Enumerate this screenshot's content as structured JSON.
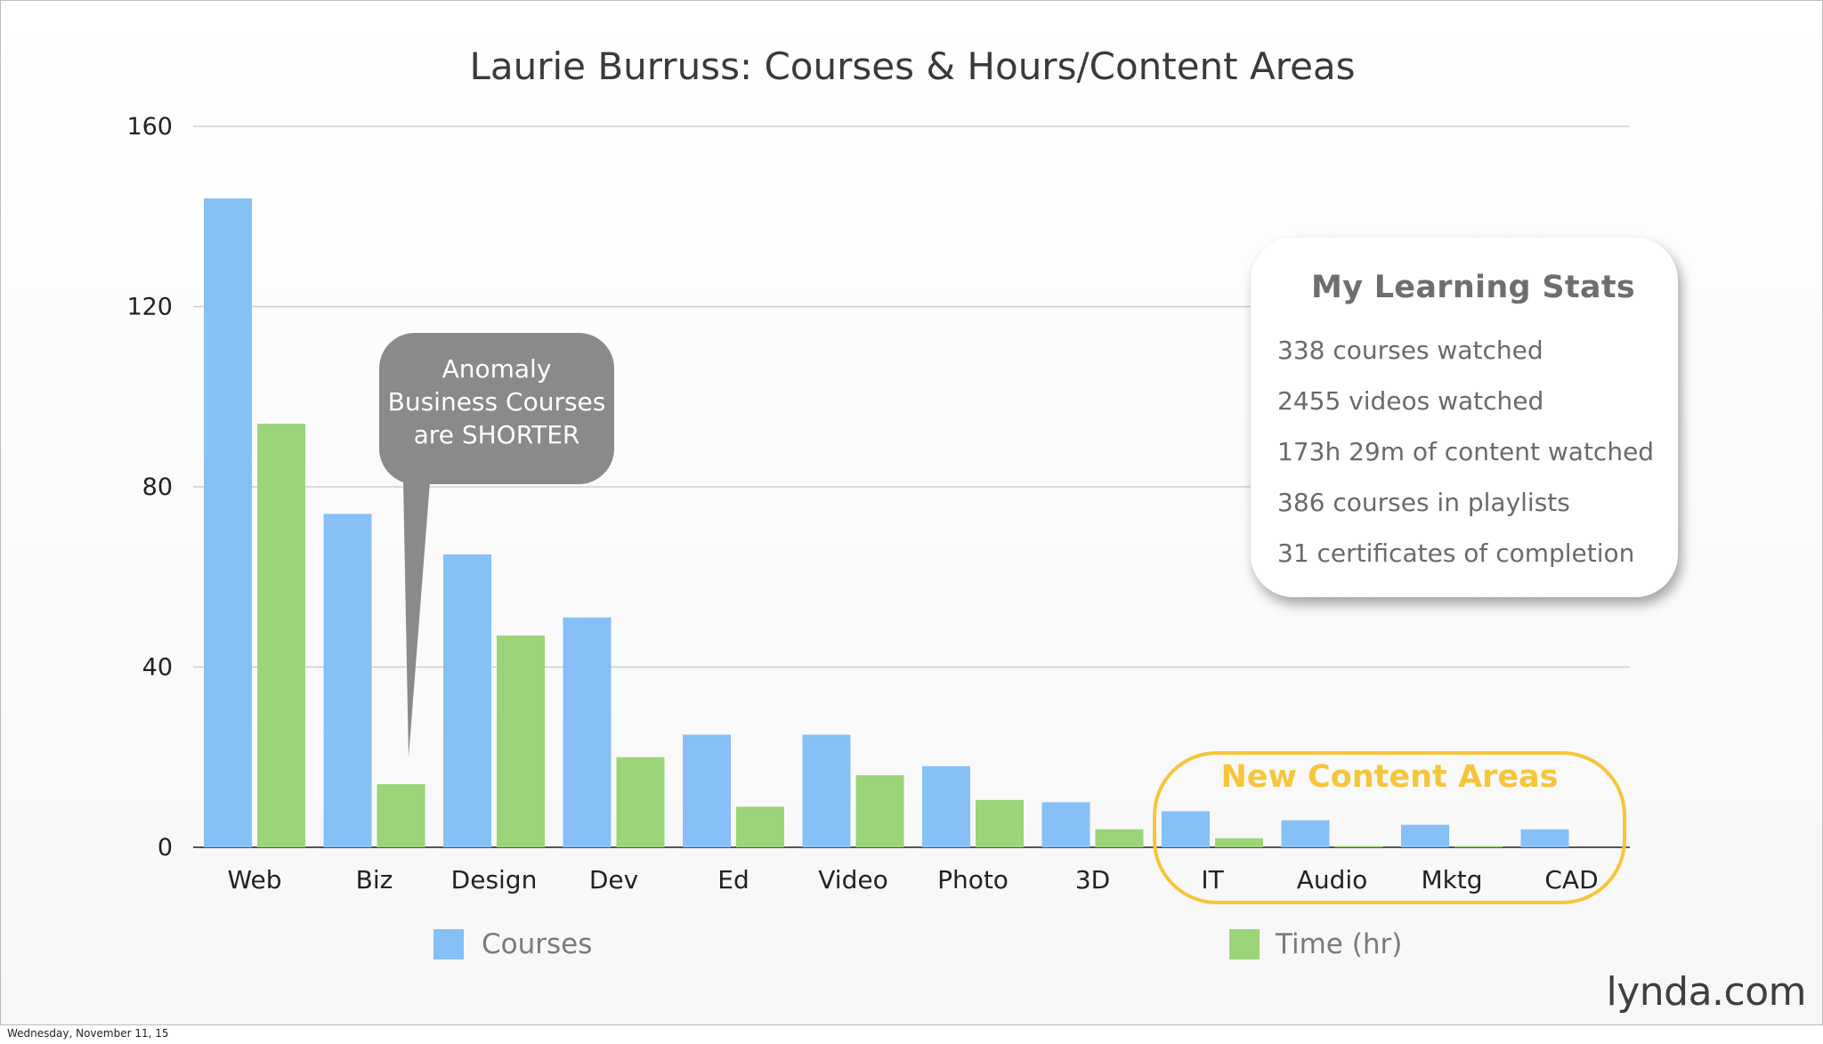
{
  "chart_data": {
    "type": "bar",
    "title": "Laurie Burruss: Courses & Hours/Content Areas",
    "categories": [
      "Web",
      "Biz",
      "Design",
      "Dev",
      "Ed",
      "Video",
      "Photo",
      "3D",
      "IT",
      "Audio",
      "Mktg",
      "CAD"
    ],
    "series": [
      {
        "name": "Courses",
        "color": "#87bff7",
        "values": [
          144,
          74,
          65,
          51,
          25,
          25,
          18,
          10,
          8,
          6,
          5,
          4
        ]
      },
      {
        "name": "Time (hr)",
        "color": "#9cd479",
        "values": [
          94,
          14,
          47,
          20,
          9,
          16,
          10.5,
          4,
          2,
          0.3,
          0.3,
          0
        ]
      }
    ],
    "ylim": [
      0,
      160
    ],
    "yticks": [
      "0",
      "40",
      "80",
      "120",
      "160"
    ],
    "grid": true,
    "legend": "bottom"
  },
  "stats": {
    "title": "My Learning Stats",
    "lines": [
      "338 courses watched",
      "2455 videos watched",
      "173h 29m of content watched",
      "386 courses in playlists",
      "31 certificates of completion"
    ]
  },
  "annotations": {
    "anomaly": [
      "Anomaly",
      "Business Courses",
      "are SHORTER"
    ],
    "new_areas": "New Content Areas",
    "anomaly_color": "#8a8a8a",
    "highlight_color": "#f6c53a"
  },
  "brand": "lynda.com",
  "footer_date": "Wednesday, November 11, 15"
}
